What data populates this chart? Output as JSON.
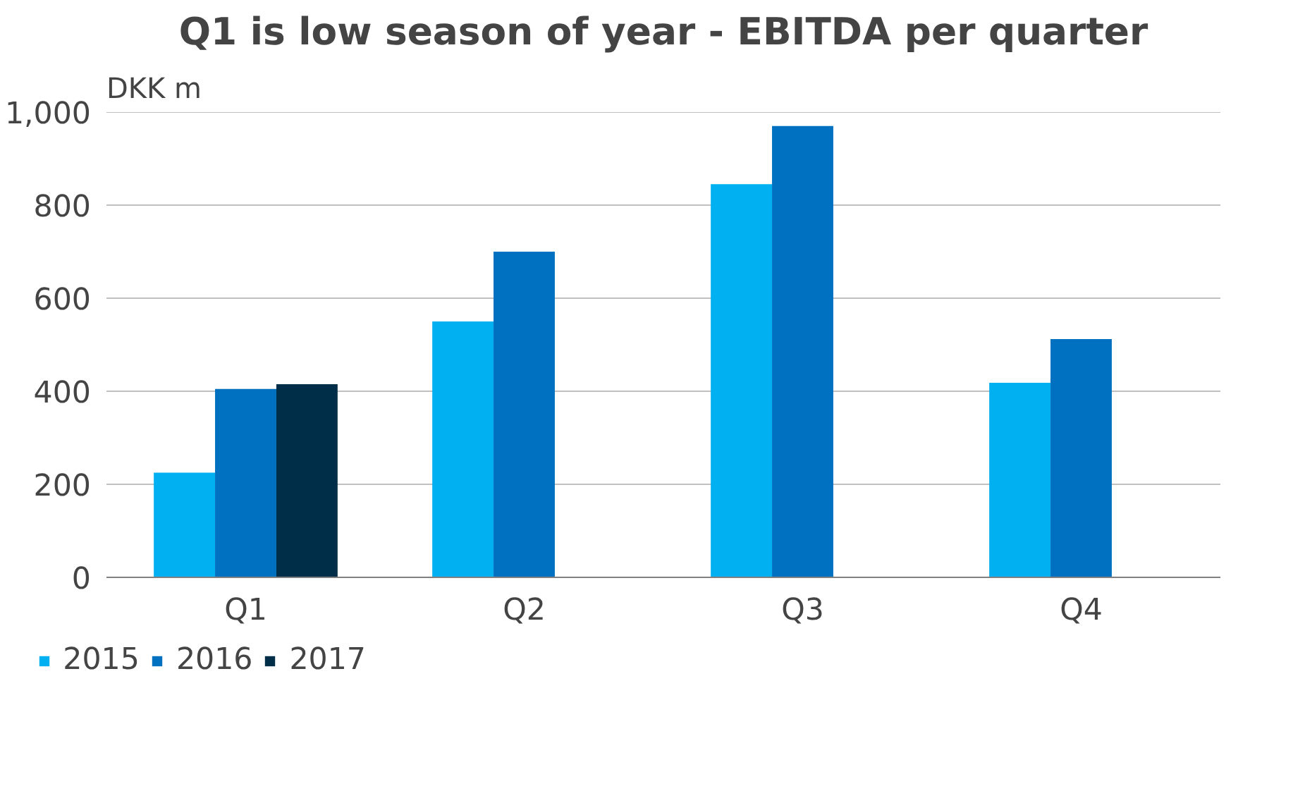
{
  "chart_data": {
    "type": "bar",
    "title": "Q1 is low season of year - EBITDA per quarter",
    "ylabel": "DKK m",
    "categories": [
      "Q1",
      "Q2",
      "Q3",
      "Q4"
    ],
    "series": [
      {
        "name": "2015",
        "color": "#00b0f0",
        "values": [
          225,
          550,
          845,
          418
        ]
      },
      {
        "name": "2016",
        "color": "#0070c0",
        "values": [
          405,
          700,
          970,
          512
        ]
      },
      {
        "name": "2017",
        "color": "#002e48",
        "values": [
          415,
          null,
          null,
          null
        ]
      }
    ],
    "ylim": [
      0,
      1000
    ],
    "yticks": [
      0,
      200,
      400,
      600,
      800,
      {
        "value": 1000,
        "label": "1,000"
      }
    ],
    "grid": "y",
    "legend": "bottom left"
  }
}
